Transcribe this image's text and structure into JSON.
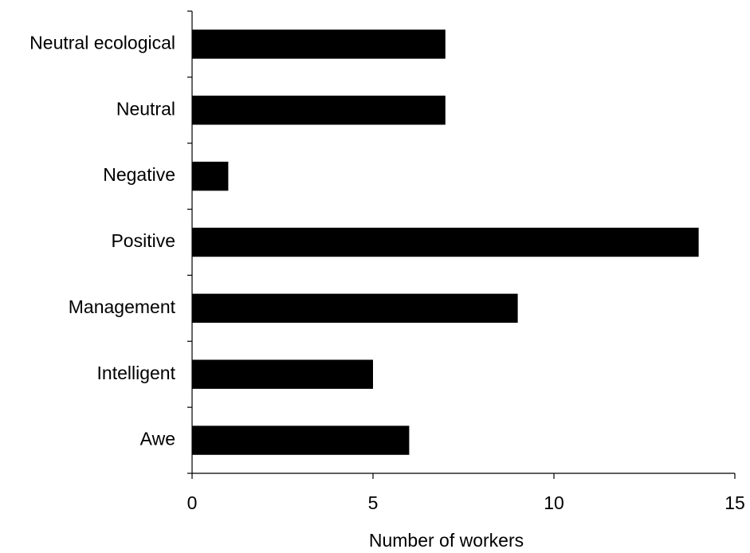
{
  "chart_data": {
    "type": "bar",
    "orientation": "horizontal",
    "categories": [
      "Neutral ecological",
      "Neutral",
      "Negative",
      "Positive",
      "Management",
      "Intelligent",
      "Awe"
    ],
    "values": [
      7,
      7,
      1,
      14,
      9,
      5,
      6
    ],
    "color": "#000000",
    "xlabel": "Number of workers",
    "xlim": [
      0,
      15
    ],
    "xticks": [
      0,
      5,
      10,
      15
    ],
    "grid": false
  }
}
